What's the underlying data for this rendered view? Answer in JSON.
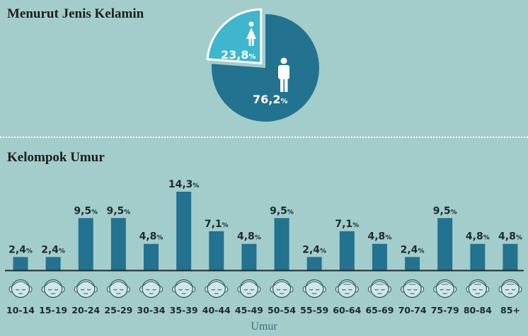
{
  "gender_section": {
    "title": "Menurut Jenis Kelamin"
  },
  "age_section": {
    "title": "Kelompok Umur"
  },
  "colors": {
    "background": "#a3cdcb",
    "bar": "#23728f",
    "pie_male": "#23728f",
    "pie_female": "#3fb5ce",
    "text": "#1d2a30"
  },
  "chart_data": [
    {
      "type": "pie",
      "title": "Menurut Jenis Kelamin",
      "slices": [
        {
          "name": "male-icon",
          "value": 76.2,
          "label": "76,2",
          "unit": "%",
          "color": "#23728f"
        },
        {
          "name": "female-icon",
          "value": 23.8,
          "label": "23,8",
          "unit": "%",
          "color": "#3fb5ce"
        }
      ]
    },
    {
      "type": "bar",
      "title": "Kelompok Umur",
      "xlabel": "Umur",
      "ylabel": "",
      "ylim": [
        0,
        14.3
      ],
      "categories": [
        "10-14",
        "15-19",
        "20-24",
        "25-29",
        "30-34",
        "35-39",
        "40-44",
        "45-49",
        "50-54",
        "55-59",
        "60-64",
        "65-69",
        "70-74",
        "75-79",
        "80-84",
        "85+"
      ],
      "values": [
        2.4,
        2.4,
        9.5,
        9.5,
        4.8,
        14.3,
        7.1,
        4.8,
        9.5,
        2.4,
        7.1,
        4.8,
        2.4,
        9.5,
        4.8,
        4.8
      ],
      "value_labels": [
        "2,4",
        "2,4",
        "9,5",
        "9,5",
        "4,8",
        "14,3",
        "7,1",
        "4,8",
        "9,5",
        "2,4",
        "7,1",
        "4,8",
        "2,4",
        "9,5",
        "4,8",
        "4,8"
      ],
      "unit": "%"
    }
  ]
}
